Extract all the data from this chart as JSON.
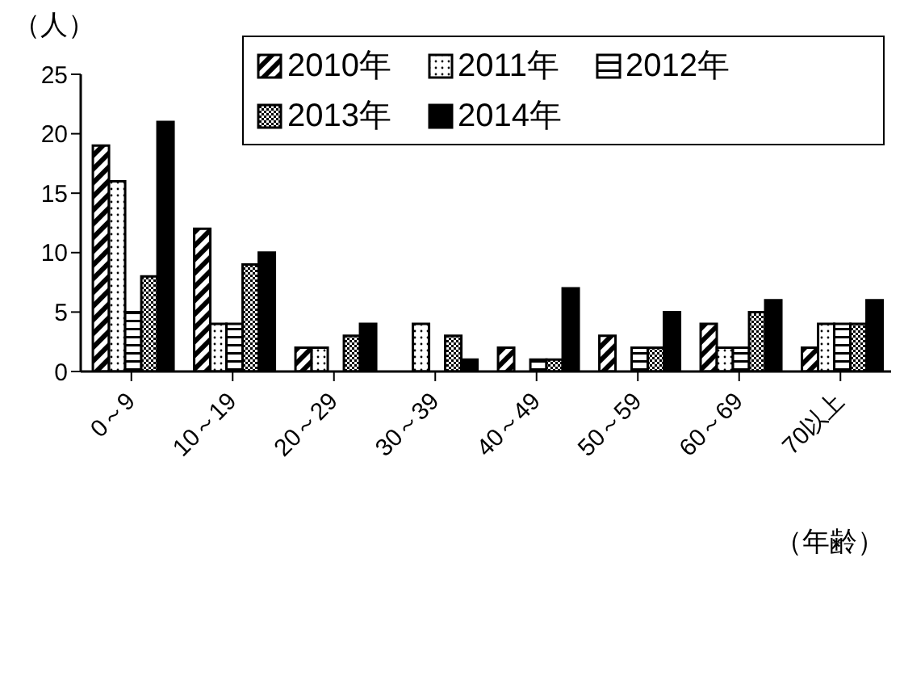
{
  "chart_data": {
    "type": "bar",
    "ylabel": "（人）",
    "xlabel": "（年齢）",
    "categories": [
      "0～9",
      "10～19",
      "20～29",
      "30～39",
      "40～49",
      "50～59",
      "60～69",
      "70以上"
    ],
    "series": [
      {
        "name": "2010年",
        "color": "#000000",
        "values": [
          19,
          12,
          2,
          0,
          2,
          3,
          4,
          2
        ]
      },
      {
        "name": "2011年",
        "color": "#000000",
        "values": [
          16,
          4,
          2,
          4,
          0,
          0,
          2,
          4
        ]
      },
      {
        "name": "2012年",
        "color": "#000000",
        "values": [
          5,
          4,
          0,
          0,
          1,
          2,
          2,
          4
        ]
      },
      {
        "name": "2013年",
        "color": "#000000",
        "values": [
          8,
          9,
          3,
          3,
          1,
          2,
          5,
          4
        ]
      },
      {
        "name": "2014年",
        "color": "#000000",
        "values": [
          21,
          10,
          4,
          1,
          7,
          5,
          6,
          6
        ]
      }
    ],
    "ylim": [
      0,
      25
    ],
    "yticks": [
      0,
      5,
      10,
      15,
      20,
      25
    ],
    "grid": false,
    "legend": "top right"
  }
}
